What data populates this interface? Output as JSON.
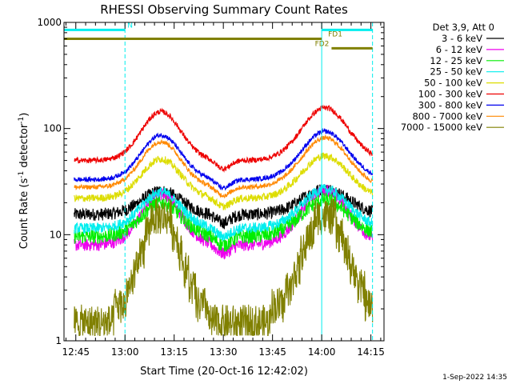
{
  "chart_data": {
    "type": "line",
    "title": "RHESSI Observing Summary Count Rates",
    "xlabel": "Start Time (20-Oct-16 12:42:02)",
    "ylabel_main": "Count Rate (s",
    "ylabel_sup1": "-1",
    "ylabel_mid": " detector",
    "ylabel_sup2": "-1",
    "ylabel_end": ")",
    "y_scale": "log",
    "ylim": [
      1,
      1000
    ],
    "xlim_minutes": [
      -3.6,
      94
    ],
    "x_ticks": [
      {
        "m": 0,
        "label": "12:45"
      },
      {
        "m": 15,
        "label": "13:00"
      },
      {
        "m": 30,
        "label": "13:15"
      },
      {
        "m": 45,
        "label": "13:30"
      },
      {
        "m": 60,
        "label": "13:45"
      },
      {
        "m": 75,
        "label": "14:00"
      },
      {
        "m": 90,
        "label": "14:15"
      }
    ],
    "y_ticks": [
      {
        "v": 1,
        "label": "1"
      },
      {
        "v": 10,
        "label": "10"
      },
      {
        "v": 100,
        "label": "100"
      },
      {
        "v": 1000,
        "label": "1000"
      }
    ],
    "legend_title": "Det 3,9, Att 0",
    "legend_placement": "outside-right",
    "series": [
      {
        "name": "3 - 6 keV",
        "color": "#000000",
        "base": 15.5,
        "amp": 0.22,
        "k_amp": [
          0.45,
          0.55
        ],
        "noise": 0.06
      },
      {
        "name": "6 - 12 keV",
        "color": "#ee00ee",
        "base": 8.0,
        "amp": 0.48,
        "k_amp": [
          0.45,
          0.55
        ],
        "noise": 0.06
      },
      {
        "name": "12 - 25 keV",
        "color": "#00ee00",
        "base": 9.6,
        "amp": 0.32,
        "k_amp": [
          0.45,
          0.55
        ],
        "noise": 0.07
      },
      {
        "name": "25 - 50 keV",
        "color": "#00eeee",
        "base": 11.5,
        "amp": 0.34,
        "k_amp": [
          0.45,
          0.55
        ],
        "noise": 0.05
      },
      {
        "name": "50 - 100 keV",
        "color": "#dddd00",
        "base": 22,
        "amp": 0.37,
        "k_amp": [
          0.45,
          0.55
        ],
        "noise": 0.035
      },
      {
        "name": "100 - 300 keV",
        "color": "#ee0000",
        "base": 50,
        "amp": 0.46,
        "k_amp": [
          0.45,
          0.55
        ],
        "noise": 0.025
      },
      {
        "name": "300 - 800 keV",
        "color": "#0000ee",
        "base": 33,
        "amp": 0.42,
        "k_amp": [
          0.45,
          0.55
        ],
        "noise": 0.022
      },
      {
        "name": "800 - 7000 keV",
        "color": "#ff8800",
        "base": 28,
        "amp": 0.43,
        "k_amp": [
          0.45,
          0.55
        ],
        "noise": 0.022
      },
      {
        "name": "7000 - 15000 keV",
        "color": "#808000",
        "base": 1.55,
        "amp": 1.05,
        "k_amp": [
          0.45,
          0.55
        ],
        "noise": 0.12
      }
    ],
    "orbit_flags": [
      {
        "label": "N",
        "color": "#00eeee",
        "start_m": -3.6,
        "end_m": 15,
        "value": 850
      },
      {
        "label": "",
        "color": "#00eeee",
        "start_m": 75,
        "end_m": 90.5,
        "value": 850
      },
      {
        "label": "FD1",
        "color": "#808000",
        "start_m": -3.6,
        "end_m": 75,
        "value": 700
      },
      {
        "label": "FD2",
        "color": "#808000",
        "start_m": 78,
        "end_m": 90.5,
        "value": 570
      }
    ],
    "night_boundaries_m": [
      -3.6,
      15,
      75,
      90.5
    ]
  },
  "footer_date": "1-Sep-2022 14:35"
}
